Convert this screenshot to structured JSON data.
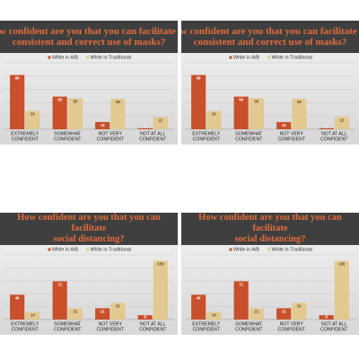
{
  "colors": {
    "series_a": "#c9502a",
    "series_b": "#e3c98f",
    "title": "#e36c3c",
    "panel_bg": "#3f3f3f"
  },
  "chart_data": [
    {
      "type": "bar",
      "title_lines": [
        "How confident are you that you can facilitate the",
        "consistent and correct use of masks?"
      ],
      "categories": [
        [
          "EXTREMELY",
          "CONFIDENT"
        ],
        [
          "SOMEWHAT",
          "CONFIDENT"
        ],
        [
          "NOT VERY",
          "CONFIDENT"
        ],
        [
          "NOT AT ALL",
          "CONFIDENT"
        ]
      ],
      "series": [
        {
          "name": "While in A/B",
          "values": [
            98,
            59,
            13,
            2
          ]
        },
        {
          "name": "While in Traditional",
          "values": [
            33,
            56,
            55,
            22
          ]
        }
      ],
      "ylim": [
        0,
        120
      ],
      "legend": "top-right"
    },
    {
      "type": "bar",
      "title_lines": [
        "How confident are you that you can facilitate the",
        "consistent and correct use of masks?"
      ],
      "categories": [
        [
          "EXTREMELY",
          "CONFIDENT"
        ],
        [
          "SOMEWHAT",
          "CONFIDENT"
        ],
        [
          "NOT VERY",
          "CONFIDENT"
        ],
        [
          "NOT AT ALL",
          "CONFIDENT"
        ]
      ],
      "series": [
        {
          "name": "While in A/B",
          "values": [
            98,
            59,
            13,
            2
          ]
        },
        {
          "name": "While in Traditional",
          "values": [
            33,
            56,
            55,
            22
          ]
        }
      ],
      "ylim": [
        0,
        120
      ],
      "legend": "top-right"
    },
    {
      "type": "bar",
      "title_lines": [
        "How confident are you that you can facilitate",
        "social distancing?"
      ],
      "categories": [
        [
          "EXTREMELY",
          "CONFIDENT"
        ],
        [
          "SOMEWHAT",
          "CONFIDENT"
        ],
        [
          "NOT VERY",
          "CONFIDENT"
        ],
        [
          "NOT AT ALL",
          "CONFIDENT"
        ]
      ],
      "series": [
        {
          "name": "While in A/B",
          "values": [
            46,
            71,
            21,
            8
          ]
        },
        {
          "name": "While in Traditional",
          "values": [
            14,
            21,
            31,
            109
          ]
        }
      ],
      "ylim": [
        0,
        120
      ],
      "legend": "top-right"
    },
    {
      "type": "bar",
      "title_lines": [
        "How confident are you that you can facilitate",
        "social distancing?"
      ],
      "categories": [
        [
          "EXTREMELY",
          "CONFIDENT"
        ],
        [
          "SOMEWHAT",
          "CONFIDENT"
        ],
        [
          "NOT VERY",
          "CONFIDENT"
        ],
        [
          "NOT AT ALL",
          "CONFIDENT"
        ]
      ],
      "series": [
        {
          "name": "While in A/B",
          "values": [
            46,
            71,
            21,
            8
          ]
        },
        {
          "name": "While in Traditional",
          "values": [
            14,
            21,
            31,
            109
          ]
        }
      ],
      "ylim": [
        0,
        120
      ],
      "legend": "top-right"
    }
  ]
}
